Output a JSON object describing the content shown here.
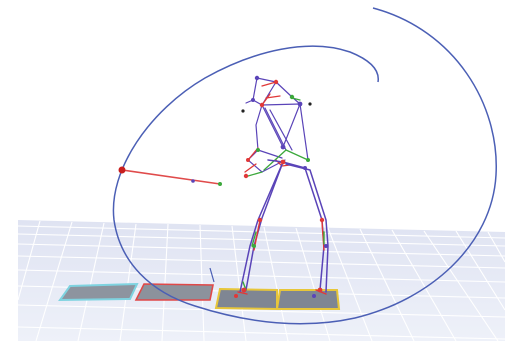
{
  "viewport": {
    "background": "#ffffff",
    "floor_color": "#e7ebf6",
    "grid_color": "#ffffff"
  },
  "colors": {
    "skeleton_blue": "#5a44b8",
    "skeleton_red": "#e03838",
    "skeleton_green": "#3ca83c",
    "trajectory": "#4b5fb5",
    "club": "#e04b4b",
    "club_head": "#c81e1e",
    "plate_dark": "#7f8693",
    "plate_outline_yellow": "#e7c63a",
    "plate_outline_red": "#e04848",
    "plate_outline_cyan": "#7fd3e0"
  },
  "icons": {
    "force_plates": "force-plate",
    "joint_markers": "joint-marker"
  }
}
